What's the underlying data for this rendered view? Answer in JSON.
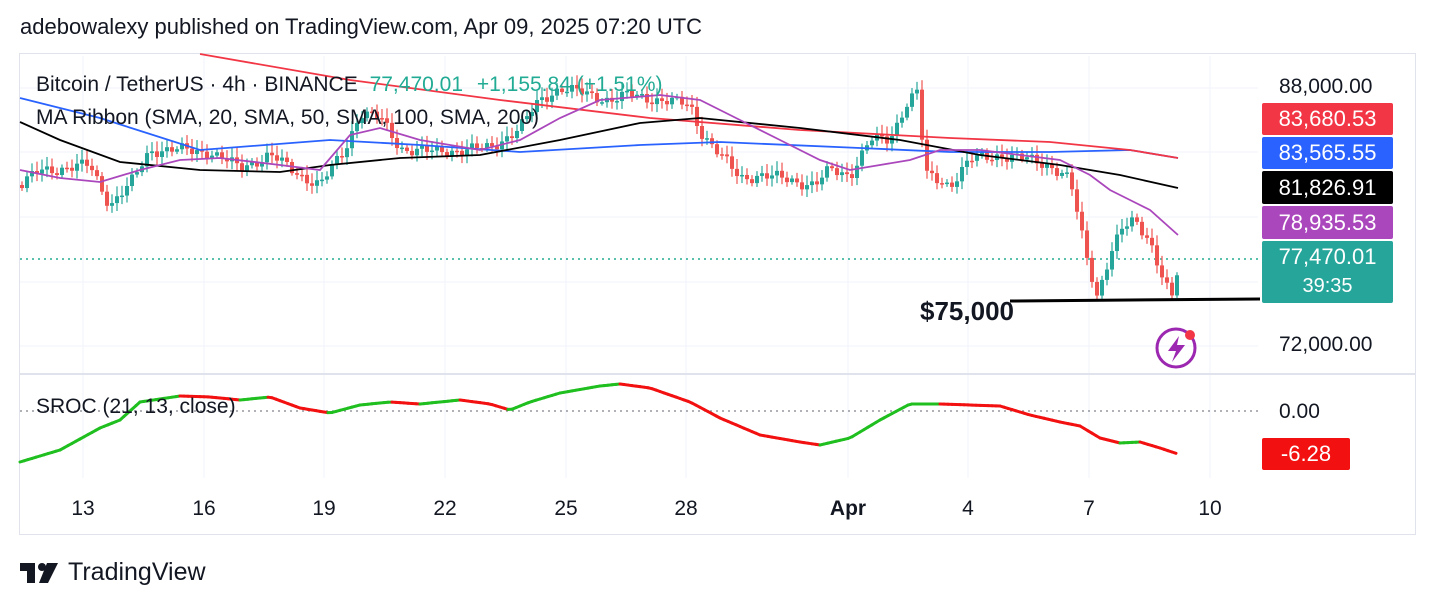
{
  "publisher_line": "adebowalexy published on TradingView.com, Apr 09, 2025 07:20 UTC",
  "legend": {
    "symbol": "Bitcoin / TetherUS · 4h · BINANCE",
    "price": "77,470.01",
    "change": "+1,155.84 (+1.51%)",
    "ma_ribbon": "MA Ribbon (SMA, 20, SMA, 50, SMA, 100, SMA, 200)",
    "sroc": "SROC (21, 13, close)"
  },
  "annotation": "$75,000",
  "price_axis": [
    "88,000.00",
    "72,000.00"
  ],
  "osc_axis": [
    "0.00"
  ],
  "badges": {
    "sma200": "83,680.53",
    "sma100": "83,565.55",
    "sma50": "81,826.91",
    "sma20": "78,935.53",
    "last_price": "77,470.01",
    "countdown": "39:35",
    "sroc": "-6.28"
  },
  "x_ticks": [
    "13",
    "16",
    "19",
    "22",
    "25",
    "28",
    "Apr",
    "4",
    "7",
    "10"
  ],
  "footer_brand": "TradingView",
  "colors": {
    "up": "#26a69a",
    "down": "#ef5350",
    "sma20": "#ab47bc",
    "sma50": "#000000",
    "sma100": "#2962ff",
    "sma200": "#f23645",
    "sroc_up": "#1fbf1f",
    "sroc_down": "#f21010"
  },
  "chart_data": {
    "type": "candlestick",
    "timeframe": "4h",
    "x": [
      "13",
      "16",
      "19",
      "22",
      "25",
      "28",
      "Apr",
      "4",
      "7",
      "10"
    ],
    "y_axis_ticks": [
      88000,
      72000
    ],
    "ylim": [
      71000,
      88500
    ],
    "series": [
      {
        "name": "SMA 20",
        "last": 78935.53
      },
      {
        "name": "SMA 50",
        "last": 81826.91
      },
      {
        "name": "SMA 100",
        "last": 83565.55
      },
      {
        "name": "SMA 200",
        "last": 83680.53
      },
      {
        "name": "Bitcoin / TetherUS",
        "last": 77470.01
      },
      {
        "name": "SROC (21, 13, close)",
        "last": -6.28
      }
    ],
    "support_level": 75000
  }
}
